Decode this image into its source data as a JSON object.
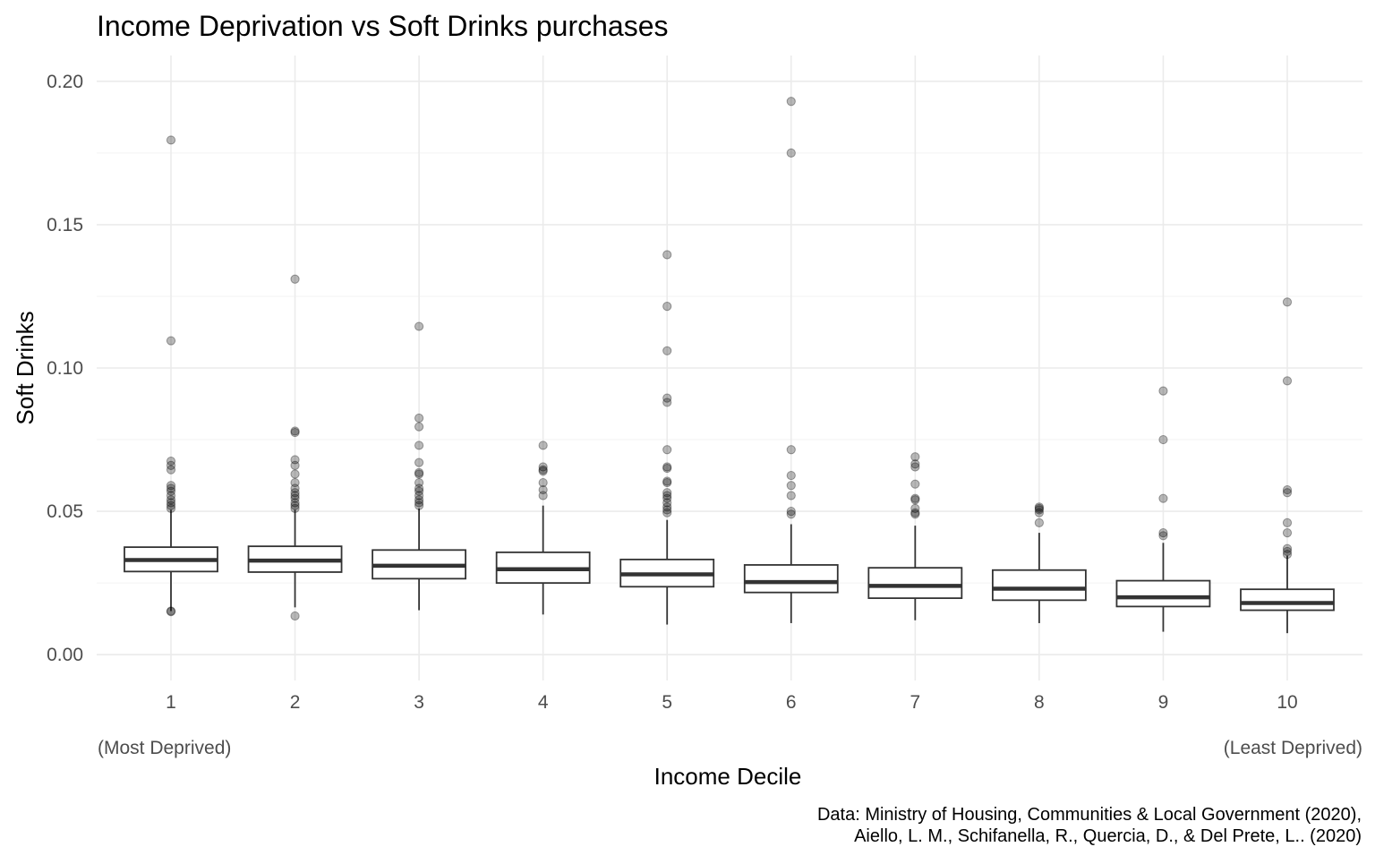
{
  "chart_data": {
    "type": "box",
    "title": "Income Deprivation vs Soft Drinks purchases",
    "xlabel": "Income Decile",
    "ylabel": "Soft Drinks",
    "x_annotations": {
      "left": "(Most Deprived)",
      "right": "(Least Deprived)"
    },
    "caption_lines": [
      "Data: Ministry of Housing, Communities & Local Government (2020),",
      "Aiello, L. M., Schifanella, R., Quercia, D., & Del Prete, L.. (2020)"
    ],
    "categories": [
      "1",
      "2",
      "3",
      "4",
      "5",
      "6",
      "7",
      "8",
      "9",
      "10"
    ],
    "y_ticks": [
      "0.00",
      "0.05",
      "0.10",
      "0.15",
      "0.20"
    ],
    "y_tick_values": [
      0,
      0.05,
      0.1,
      0.15,
      0.2
    ],
    "ylim": [
      -0.009,
      0.209
    ],
    "grid": true,
    "colors": {
      "box_stroke": "#333333",
      "outlier_fill": "#000000",
      "grid_major": "#ebebeb",
      "grid_minor": "#f3f3f3",
      "axis_text": "#4d4d4d"
    },
    "boxes": [
      {
        "category": "1",
        "lower_whisker": 0.0152,
        "q1": 0.029,
        "median": 0.033,
        "q3": 0.0375,
        "upper_whisker": 0.0505,
        "outliers": [
          0.1795,
          0.1095,
          0.0675,
          0.066,
          0.0645,
          0.059,
          0.058,
          0.057,
          0.0555,
          0.054,
          0.053,
          0.052,
          0.051,
          0.0152,
          0.015
        ]
      },
      {
        "category": "2",
        "lower_whisker": 0.0165,
        "q1": 0.0288,
        "median": 0.0328,
        "q3": 0.0378,
        "upper_whisker": 0.0505,
        "outliers": [
          0.131,
          0.078,
          0.0775,
          0.068,
          0.066,
          0.063,
          0.06,
          0.058,
          0.0565,
          0.0555,
          0.0545,
          0.053,
          0.052,
          0.051,
          0.0135
        ]
      },
      {
        "category": "3",
        "lower_whisker": 0.0155,
        "q1": 0.0265,
        "median": 0.031,
        "q3": 0.0365,
        "upper_whisker": 0.051,
        "outliers": [
          0.1145,
          0.0825,
          0.0795,
          0.073,
          0.067,
          0.0635,
          0.063,
          0.06,
          0.058,
          0.057,
          0.0555,
          0.054,
          0.053,
          0.052
        ]
      },
      {
        "category": "4",
        "lower_whisker": 0.014,
        "q1": 0.025,
        "median": 0.0298,
        "q3": 0.0357,
        "upper_whisker": 0.052,
        "outliers": [
          0.073,
          0.0655,
          0.0645,
          0.064,
          0.06,
          0.0575,
          0.0555
        ]
      },
      {
        "category": "5",
        "lower_whisker": 0.0105,
        "q1": 0.0237,
        "median": 0.028,
        "q3": 0.0332,
        "upper_whisker": 0.047,
        "outliers": [
          0.1395,
          0.1215,
          0.106,
          0.0895,
          0.088,
          0.0715,
          0.0655,
          0.065,
          0.0605,
          0.06,
          0.0565,
          0.0555,
          0.0545,
          0.053,
          0.0515,
          0.0505,
          0.0495
        ]
      },
      {
        "category": "6",
        "lower_whisker": 0.011,
        "q1": 0.0217,
        "median": 0.0253,
        "q3": 0.0313,
        "upper_whisker": 0.0455,
        "outliers": [
          0.193,
          0.175,
          0.0715,
          0.0625,
          0.059,
          0.0555,
          0.05,
          0.049
        ]
      },
      {
        "category": "7",
        "lower_whisker": 0.012,
        "q1": 0.0197,
        "median": 0.024,
        "q3": 0.0303,
        "upper_whisker": 0.045,
        "outliers": [
          0.069,
          0.0665,
          0.0655,
          0.0595,
          0.0545,
          0.054,
          0.051,
          0.0495,
          0.049
        ]
      },
      {
        "category": "8",
        "lower_whisker": 0.011,
        "q1": 0.019,
        "median": 0.023,
        "q3": 0.0295,
        "upper_whisker": 0.0425,
        "outliers": [
          0.0515,
          0.051,
          0.0505,
          0.0495,
          0.046
        ]
      },
      {
        "category": "9",
        "lower_whisker": 0.008,
        "q1": 0.0168,
        "median": 0.02,
        "q3": 0.0258,
        "upper_whisker": 0.039,
        "outliers": [
          0.092,
          0.075,
          0.0545,
          0.0425,
          0.0415
        ]
      },
      {
        "category": "10",
        "lower_whisker": 0.0075,
        "q1": 0.0155,
        "median": 0.018,
        "q3": 0.0228,
        "upper_whisker": 0.0345,
        "outliers": [
          0.123,
          0.0955,
          0.0575,
          0.0565,
          0.046,
          0.0425,
          0.037,
          0.036,
          0.035
        ]
      }
    ]
  }
}
